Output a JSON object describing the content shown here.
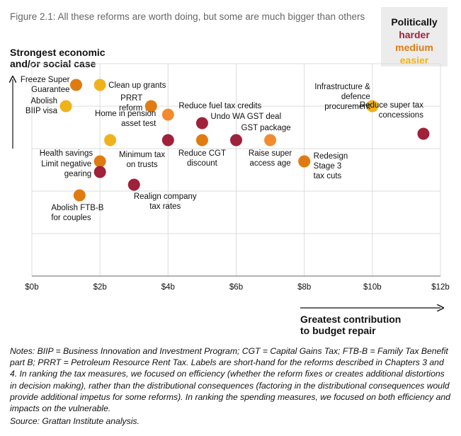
{
  "title": "Figure 2.1: All these reforms are worth doing, but some are much bigger than others",
  "legend": {
    "heading": "Politically",
    "items": [
      {
        "label": "harder",
        "color": "#a0213a"
      },
      {
        "label": "medium",
        "color": "#e07b12"
      },
      {
        "label": "easier",
        "color": "#f0b21c"
      }
    ]
  },
  "y_axis_label": [
    "Strongest economic",
    "and/or social case"
  ],
  "x_axis_label": [
    "Greatest contribution",
    "to budget repair"
  ],
  "colors": {
    "harder": "#a0213a",
    "medium": "#e07b12",
    "easier": "#f0b21c",
    "light_orange": "#f38b2e"
  },
  "chart_data": {
    "type": "scatter",
    "xlabel": "Greatest contribution to budget repair",
    "ylabel": "Strongest economic and/or social case",
    "xlim": [
      0,
      12
    ],
    "ylim": [
      0,
      10
    ],
    "x_ticks": [
      "$0b",
      "$2b",
      "$4b",
      "$6b",
      "$8b",
      "$10b",
      "$12b"
    ],
    "grid": true,
    "points": [
      {
        "label": [
          "Freeze Super",
          "Guarantee"
        ],
        "x": 1.3,
        "y": 9.0,
        "category": "medium"
      },
      {
        "label": [
          "Clean up grants"
        ],
        "x": 2.0,
        "y": 9.0,
        "category": "easier"
      },
      {
        "label": [
          "Abolish",
          "BIIP visa"
        ],
        "x": 1.0,
        "y": 8.0,
        "category": "easier"
      },
      {
        "label": [
          "PRRT",
          "reform"
        ],
        "x": 3.5,
        "y": 8.0,
        "category": "medium"
      },
      {
        "label": [
          "Reduce fuel tax credits"
        ],
        "x": 4.0,
        "y": 7.6,
        "category": "medium_light"
      },
      {
        "label": [
          "Undo WA GST deal"
        ],
        "x": 5.0,
        "y": 7.2,
        "category": "harder"
      },
      {
        "label": [
          "Infrastructure &",
          "defence",
          "procurement"
        ],
        "x": 10.0,
        "y": 8.0,
        "category": "easier"
      },
      {
        "label": [
          "Reduce super tax",
          "concessions"
        ],
        "x": 11.5,
        "y": 6.7,
        "category": "harder"
      },
      {
        "label": [
          "Home in pension",
          "asset test"
        ],
        "x": 4.0,
        "y": 6.4,
        "category": "harder"
      },
      {
        "label": [
          "GST package"
        ],
        "x": 6.0,
        "y": 6.4,
        "category": "harder"
      },
      {
        "label": [
          "Reduce CGT",
          "discount"
        ],
        "x": 5.0,
        "y": 6.4,
        "category": "medium"
      },
      {
        "label": [
          "Raise super",
          "access age"
        ],
        "x": 7.0,
        "y": 6.4,
        "category": "medium_light"
      },
      {
        "label": [
          "Minimum tax",
          "on trusts"
        ],
        "x": 2.3,
        "y": 6.4,
        "category": "easier"
      },
      {
        "label": [
          "Health savings"
        ],
        "x": 2.0,
        "y": 5.4,
        "category": "medium"
      },
      {
        "label": [
          "Limit negative",
          "gearing"
        ],
        "x": 2.0,
        "y": 4.9,
        "category": "harder"
      },
      {
        "label": [
          "Redesign",
          "Stage 3",
          "tax cuts"
        ],
        "x": 8.0,
        "y": 5.4,
        "category": "medium"
      },
      {
        "label": [
          "Realign company",
          "tax rates"
        ],
        "x": 3.0,
        "y": 4.3,
        "category": "harder"
      },
      {
        "label": [
          "Abolish FTB-B",
          "for couples"
        ],
        "x": 1.4,
        "y": 3.8,
        "category": "medium"
      }
    ]
  },
  "notes": "Notes: BIIP = Business Innovation and Investment Program; CGT = Capital Gains Tax; FTB-B = Family Tax Benefit part B; PRRT = Petroleum Resource Rent Tax. Labels are short-hand for the reforms described in Chapters 3 and 4. In ranking the tax measures, we focused on efficiency (whether the reform fixes or creates additional distortions in decision making), rather than the distributional consequences (factoring in the distributional consequences would provide additional impetus for some reforms). In ranking the spending measures, we focused on both efficiency and impacts on the vulnerable.",
  "source": "Source: Grattan Institute analysis."
}
